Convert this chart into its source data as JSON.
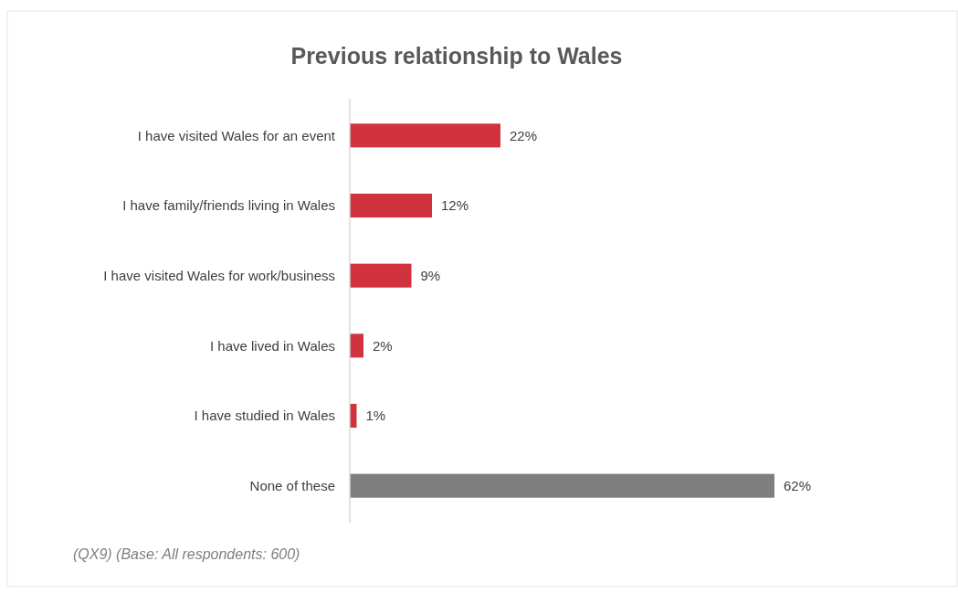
{
  "chart_data": {
    "type": "bar",
    "orientation": "horizontal",
    "title": "Previous relationship to Wales",
    "categories": [
      "I have visited Wales for an event",
      "I have family/friends living in Wales",
      "I have visited Wales for work/business",
      "I have lived in Wales",
      "I have studied in Wales",
      "None of these"
    ],
    "values": [
      22,
      12,
      9,
      2,
      1,
      62
    ],
    "colors": [
      "#d0333d",
      "#d0333d",
      "#d0333d",
      "#d0333d",
      "#d0333d",
      "#7f7f7f"
    ],
    "value_labels": [
      "22%",
      "12%",
      "9%",
      "2%",
      "1%",
      "62%"
    ],
    "annotations": [
      "(QX9) (Base: All respondents: 600)"
    ]
  }
}
